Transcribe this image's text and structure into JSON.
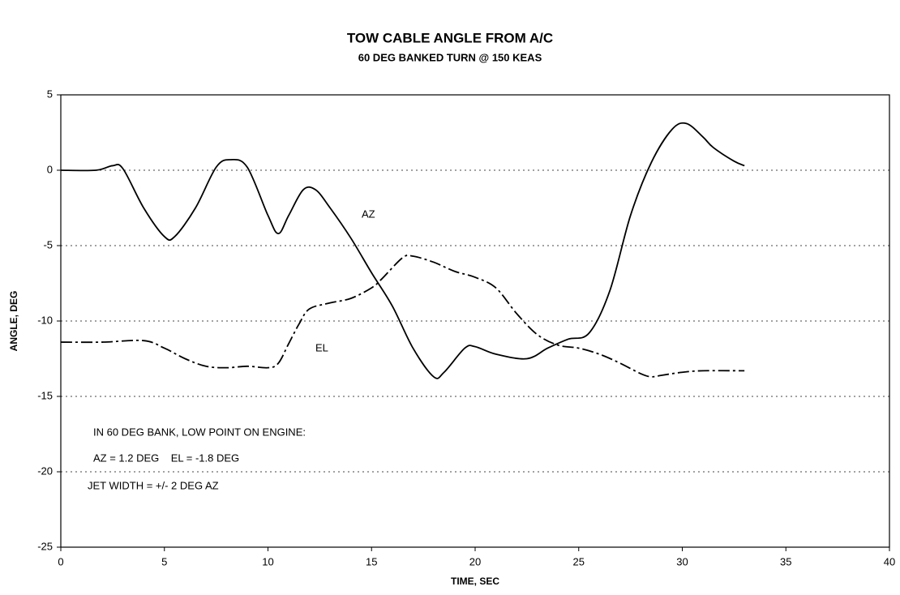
{
  "chart_data": {
    "type": "line",
    "title": "TOW CABLE ANGLE FROM A/C",
    "subtitle": "60 DEG BANKED TURN @ 150 KEAS",
    "x_label": "TIME, SEC",
    "y_label": "ANGLE, DEG",
    "xlim": [
      0,
      40
    ],
    "xticks": [
      0,
      5,
      10,
      15,
      20,
      25,
      30,
      35,
      40
    ],
    "ylim": [
      -25,
      5
    ],
    "yticks": [
      -25,
      -20,
      -15,
      -10,
      -5,
      0,
      5
    ],
    "grid": true,
    "series": [
      {
        "name": "AZ",
        "color": "#000000",
        "style": "solid",
        "x": [
          0,
          1.7,
          2.5,
          3,
          4,
          5,
          5.5,
          6.5,
          7.5,
          8.2,
          9,
          10,
          10.5,
          11,
          11.7,
          12.3,
          13,
          14,
          15,
          16,
          17,
          18,
          18.5,
          19.5,
          20,
          21,
          22.5,
          23.5,
          24.5,
          25.5,
          26.5,
          27.5,
          28.5,
          29.5,
          30.2,
          31,
          31.5,
          32.5,
          33
        ],
        "values": [
          0,
          0,
          0.3,
          0.1,
          -2.5,
          -4.4,
          -4.4,
          -2.5,
          0.2,
          0.7,
          0.2,
          -3,
          -4.2,
          -3,
          -1.3,
          -1.3,
          -2.5,
          -4.5,
          -6.8,
          -9,
          -11.8,
          -13.7,
          -13.4,
          -11.8,
          -11.7,
          -12.2,
          -12.5,
          -11.8,
          -11.2,
          -10.8,
          -8,
          -3,
          0.5,
          2.7,
          3.1,
          2.2,
          1.5,
          0.6,
          0.3
        ]
      },
      {
        "name": "EL",
        "color": "#000000",
        "style": "dashdot",
        "x": [
          0,
          2,
          4,
          5,
          6,
          7,
          8,
          9,
          10,
          10.5,
          11,
          11.5,
          12,
          13,
          14,
          15,
          15.5,
          16.5,
          17,
          18,
          19,
          20,
          21,
          22,
          23,
          24,
          25,
          26,
          27,
          28,
          28.5,
          29,
          30,
          31,
          33
        ],
        "values": [
          -11.4,
          -11.4,
          -11.3,
          -11.8,
          -12.5,
          -13,
          -13.1,
          -13,
          -13.1,
          -12.8,
          -11.5,
          -10.2,
          -9.2,
          -8.8,
          -8.5,
          -7.8,
          -7.2,
          -5.8,
          -5.7,
          -6.1,
          -6.7,
          -7.1,
          -7.8,
          -9.5,
          -10.9,
          -11.6,
          -11.8,
          -12.2,
          -12.8,
          -13.5,
          -13.7,
          -13.6,
          -13.4,
          -13.3,
          -13.3
        ]
      }
    ],
    "annotations": [
      "IN 60 DEG BANK, LOW POINT ON ENGINE:",
      "AZ = 1.2 DEG    EL = -1.8 DEG",
      "JET WIDTH = +/- 2 DEG AZ"
    ]
  }
}
